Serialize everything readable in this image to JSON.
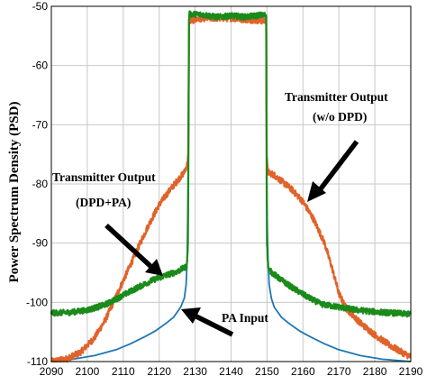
{
  "chart_data": {
    "type": "line",
    "title": "",
    "xlabel": "",
    "ylabel": "Power Spectrum Density (PSD)",
    "xlim": [
      2090,
      2190
    ],
    "ylim": [
      -110,
      -50
    ],
    "xticks": [
      2090,
      2100,
      2110,
      2120,
      2130,
      2140,
      2150,
      2160,
      2170,
      2180,
      2190
    ],
    "yticks": [
      -110,
      -100,
      -90,
      -80,
      -70,
      -60,
      -50
    ],
    "grid": true,
    "colors": {
      "pa_input": "#1f77b4",
      "without_dpd": "#e0632a",
      "dpd_pa": "#1a8a1a"
    },
    "series": [
      {
        "key": "pa_input",
        "points": [
          [
            2090,
            -110
          ],
          [
            2096,
            -109.6
          ],
          [
            2102,
            -109
          ],
          [
            2108,
            -108
          ],
          [
            2112,
            -107
          ],
          [
            2116,
            -105.8
          ],
          [
            2119,
            -104.8
          ],
          [
            2122,
            -103.5
          ],
          [
            2124,
            -102.5
          ],
          [
            2126,
            -100.8
          ],
          [
            2127,
            -99.3
          ],
          [
            2127.5,
            -97
          ],
          [
            2127.8,
            -93
          ],
          [
            2127.9,
            -88
          ],
          [
            2128,
            -83
          ],
          [
            2128.1,
            -75
          ],
          [
            2128.3,
            -52.2
          ],
          [
            2132,
            -51.8
          ],
          [
            2136,
            -51.8
          ],
          [
            2140,
            -51.8
          ],
          [
            2144,
            -51.8
          ],
          [
            2148,
            -51.8
          ],
          [
            2149.8,
            -52.2
          ],
          [
            2149.9,
            -75
          ],
          [
            2150,
            -83
          ],
          [
            2150.1,
            -88
          ],
          [
            2150.3,
            -93
          ],
          [
            2150.6,
            -97
          ],
          [
            2151.2,
            -99.3
          ],
          [
            2152,
            -100.8
          ],
          [
            2154,
            -102.5
          ],
          [
            2156,
            -103.5
          ],
          [
            2159,
            -104.8
          ],
          [
            2162,
            -105.8
          ],
          [
            2166,
            -107
          ],
          [
            2170,
            -108
          ],
          [
            2176,
            -109
          ],
          [
            2182,
            -109.6
          ],
          [
            2190,
            -110
          ]
        ],
        "noise": 0
      },
      {
        "key": "without_dpd",
        "points": [
          [
            2090,
            -110
          ],
          [
            2094,
            -109.6
          ],
          [
            2098,
            -108.5
          ],
          [
            2102,
            -106
          ],
          [
            2105,
            -103
          ],
          [
            2108,
            -99
          ],
          [
            2111,
            -95
          ],
          [
            2114,
            -91
          ],
          [
            2117,
            -87
          ],
          [
            2120,
            -83.5
          ],
          [
            2123,
            -81
          ],
          [
            2125,
            -79.5
          ],
          [
            2127,
            -78
          ],
          [
            2127.6,
            -77
          ],
          [
            2127.9,
            -76.5
          ],
          [
            2128.1,
            -75
          ],
          [
            2128.3,
            -52.5
          ],
          [
            2132,
            -52
          ],
          [
            2140,
            -52
          ],
          [
            2149.8,
            -52.5
          ],
          [
            2149.9,
            -75
          ],
          [
            2150.2,
            -78
          ],
          [
            2152,
            -78.5
          ],
          [
            2154,
            -79.5
          ],
          [
            2157,
            -81
          ],
          [
            2160,
            -83
          ],
          [
            2163,
            -86
          ],
          [
            2166,
            -90
          ],
          [
            2168,
            -94
          ],
          [
            2170,
            -98.5
          ],
          [
            2172,
            -101
          ],
          [
            2176,
            -103.5
          ],
          [
            2180,
            -105.5
          ],
          [
            2184,
            -107.2
          ],
          [
            2188,
            -108.6
          ],
          [
            2190,
            -109.2
          ]
        ],
        "noise": 0.55
      },
      {
        "key": "dpd_pa",
        "points": [
          [
            2090,
            -101.8
          ],
          [
            2095,
            -101.7
          ],
          [
            2100,
            -101.3
          ],
          [
            2105,
            -100.4
          ],
          [
            2110,
            -98.8
          ],
          [
            2114,
            -97.5
          ],
          [
            2118,
            -96.3
          ],
          [
            2122,
            -95.4
          ],
          [
            2125,
            -94.8
          ],
          [
            2127.5,
            -94
          ],
          [
            2127.8,
            -93
          ],
          [
            2128,
            -90
          ],
          [
            2128.1,
            -80
          ],
          [
            2128.3,
            -51.3
          ],
          [
            2132,
            -51.4
          ],
          [
            2136,
            -51.8
          ],
          [
            2140,
            -51.6
          ],
          [
            2144,
            -51.8
          ],
          [
            2148,
            -51.5
          ],
          [
            2149.8,
            -51.5
          ],
          [
            2149.9,
            -80
          ],
          [
            2150,
            -90
          ],
          [
            2150.2,
            -93
          ],
          [
            2150.5,
            -94.5
          ],
          [
            2153,
            -95.8
          ],
          [
            2157,
            -97.5
          ],
          [
            2161,
            -99
          ],
          [
            2165,
            -100.3
          ],
          [
            2170,
            -100.8
          ],
          [
            2175,
            -101.3
          ],
          [
            2180,
            -101.6
          ],
          [
            2185,
            -101.8
          ],
          [
            2190,
            -102
          ]
        ],
        "noise": 0.5
      }
    ],
    "annotations": [
      {
        "key": "tx_no_dpd_1",
        "text": "Transmitter Output"
      },
      {
        "key": "tx_no_dpd_2",
        "text": "(w/o DPD)"
      },
      {
        "key": "tx_dpd_1",
        "text": "Transmitter Output"
      },
      {
        "key": "tx_dpd_2",
        "text": "(DPD+PA)"
      },
      {
        "key": "pa_input",
        "text": "PA Input"
      }
    ]
  }
}
